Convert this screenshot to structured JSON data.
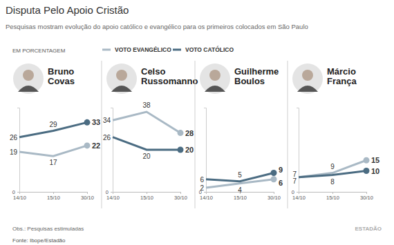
{
  "title": "Disputa Pelo Apoio Cristão",
  "subtitle": "Pesquisas mostram evolução do apoio católico e evangélico para os primeiros colocados em São Paulo",
  "unit_label": "EM PORCENTAGEM",
  "note": "Obs.: Pesquisas estimuladas",
  "source": "Fonte: Ibope/Estadão",
  "brand": "ESTADÃO",
  "chart_data": [
    {
      "type": "line",
      "title": "Bruno Covas",
      "categories": [
        "14/10",
        "15/10",
        "30/10"
      ],
      "series": [
        {
          "name": "VOTO EVANGÉLICO",
          "color": "#a9b9c5",
          "values": [
            19,
            17,
            22
          ]
        },
        {
          "name": "VOTO CATÓLICO",
          "color": "#4b6c82",
          "values": [
            26,
            29,
            33
          ]
        }
      ],
      "ylim": [
        0,
        40
      ],
      "yticks": [
        0
      ],
      "data_labels": true,
      "grid": false
    },
    {
      "type": "line",
      "title": "Celso Russomanno",
      "categories": [
        "14/10",
        "15/10",
        "30/10"
      ],
      "series": [
        {
          "name": "VOTO EVANGÉLICO",
          "color": "#a9b9c5",
          "values": [
            34,
            38,
            28
          ]
        },
        {
          "name": "VOTO CATÓLICO",
          "color": "#4b6c82",
          "values": [
            26,
            20,
            20
          ]
        }
      ],
      "ylim": [
        0,
        40
      ],
      "yticks": [
        0
      ],
      "data_labels": true,
      "grid": false
    },
    {
      "type": "line",
      "title": "Guilherme Boulos",
      "categories": [
        "14/10",
        "15/10",
        "30/10"
      ],
      "series": [
        {
          "name": "VOTO EVANGÉLICO",
          "color": "#a9b9c5",
          "values": [
            2,
            4,
            6
          ]
        },
        {
          "name": "VOTO CATÓLICO",
          "color": "#4b6c82",
          "values": [
            6,
            5,
            9
          ]
        }
      ],
      "ylim": [
        0,
        40
      ],
      "yticks": [
        0
      ],
      "data_labels": true,
      "grid": false
    },
    {
      "type": "line",
      "title": "Márcio França",
      "categories": [
        "14/10",
        "15/10",
        "30/10"
      ],
      "series": [
        {
          "name": "VOTO EVANGÉLICO",
          "color": "#a9b9c5",
          "values": [
            7,
            9,
            15
          ]
        },
        {
          "name": "VOTO CATÓLICO",
          "color": "#4b6c82",
          "values": [
            7,
            8,
            10
          ]
        }
      ],
      "ylim": [
        0,
        40
      ],
      "yticks": [
        0
      ],
      "data_labels": true,
      "grid": false
    }
  ]
}
